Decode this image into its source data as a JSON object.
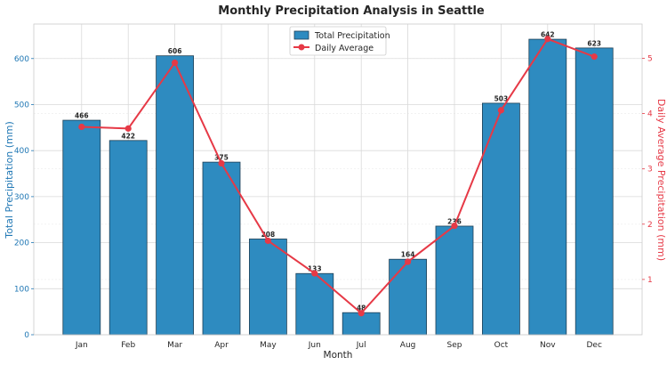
{
  "colors": {
    "bar": "#2E8BC0",
    "bar_edge": "#1f3f55",
    "line": "#E63946",
    "left_axis": "#1f77b4",
    "right_axis": "#E63946",
    "grid": "#d9d9d9",
    "text": "#262626"
  },
  "chart_data": {
    "type": "bar",
    "title": "Monthly Precipitation Analysis in Seattle",
    "xlabel": "Month",
    "ylabel": "Total Precipitation (mm)",
    "y2label": "Daily Average Precipitation (mm)",
    "categories": [
      "Jan",
      "Feb",
      "Mar",
      "Apr",
      "May",
      "Jun",
      "Jul",
      "Aug",
      "Sep",
      "Oct",
      "Nov",
      "Dec"
    ],
    "series": [
      {
        "name": "Total Precipitation",
        "type": "bar",
        "axis": "left",
        "values": [
          466,
          422,
          606,
          375,
          208,
          133,
          48,
          164,
          236,
          503,
          642,
          623
        ],
        "labels": [
          "466",
          "422",
          "606",
          "375",
          "208",
          "133",
          "48",
          "164",
          "236",
          "503",
          "642",
          "623"
        ]
      },
      {
        "name": "Daily Average",
        "type": "line",
        "axis": "right",
        "values": [
          3.76,
          3.73,
          4.92,
          3.1,
          1.7,
          1.11,
          0.39,
          1.32,
          1.97,
          4.06,
          5.35,
          5.03
        ]
      }
    ],
    "ylim": [
      0,
      675
    ],
    "y_ticks": [
      0,
      100,
      200,
      300,
      400,
      500,
      600
    ],
    "y2lim": [
      0,
      5.62
    ],
    "y2_ticks": [
      1,
      2,
      3,
      4,
      5
    ],
    "grid": true,
    "legend": "top-center"
  }
}
